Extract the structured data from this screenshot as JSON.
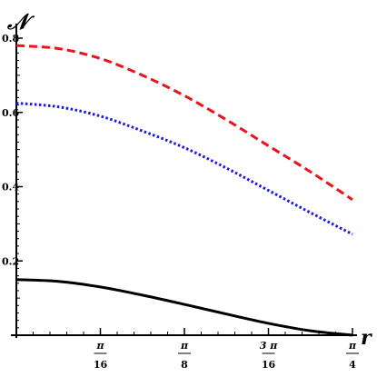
{
  "chart_data": {
    "type": "line",
    "title": "",
    "xlabel": "r",
    "ylabel": "𝒩",
    "xlim": [
      0,
      0.7853981634
    ],
    "ylim": [
      0,
      0.82
    ],
    "grid": false,
    "x_ticks": [
      {
        "value": 0.19634954085,
        "numerator": "π",
        "denominator": "16"
      },
      {
        "value": 0.3926990817,
        "numerator": "π",
        "denominator": "8"
      },
      {
        "value": 0.58904862255,
        "numerator": "3 π",
        "denominator": "16"
      },
      {
        "value": 0.7853981634,
        "numerator": "π",
        "denominator": "4"
      }
    ],
    "y_ticks": [
      {
        "value": 0.2,
        "label": "0.2"
      },
      {
        "value": 0.4,
        "label": "0.4"
      },
      {
        "value": 0.6,
        "label": "0.6"
      },
      {
        "value": 0.8,
        "label": "0.8"
      }
    ],
    "series": [
      {
        "color": "#e8141c",
        "style": "dashed",
        "x": [
          0,
          0.0982,
          0.1963,
          0.2945,
          0.3927,
          0.4909,
          0.589,
          0.6872,
          0.7854
        ],
        "values": [
          0.78,
          0.772,
          0.745,
          0.7,
          0.645,
          0.58,
          0.51,
          0.44,
          0.365
        ]
      },
      {
        "color": "#1a1ae0",
        "style": "dotted",
        "x": [
          0,
          0.0982,
          0.1963,
          0.2945,
          0.3927,
          0.4909,
          0.589,
          0.6872,
          0.7854
        ],
        "values": [
          0.625,
          0.615,
          0.59,
          0.55,
          0.505,
          0.45,
          0.39,
          0.33,
          0.272
        ]
      },
      {
        "color": "#000000",
        "style": "solid",
        "x": [
          0,
          0.0982,
          0.1963,
          0.2945,
          0.3927,
          0.4909,
          0.589,
          0.6872,
          0.7854
        ],
        "values": [
          0.15,
          0.145,
          0.13,
          0.108,
          0.083,
          0.057,
          0.032,
          0.012,
          0.0
        ]
      }
    ]
  }
}
